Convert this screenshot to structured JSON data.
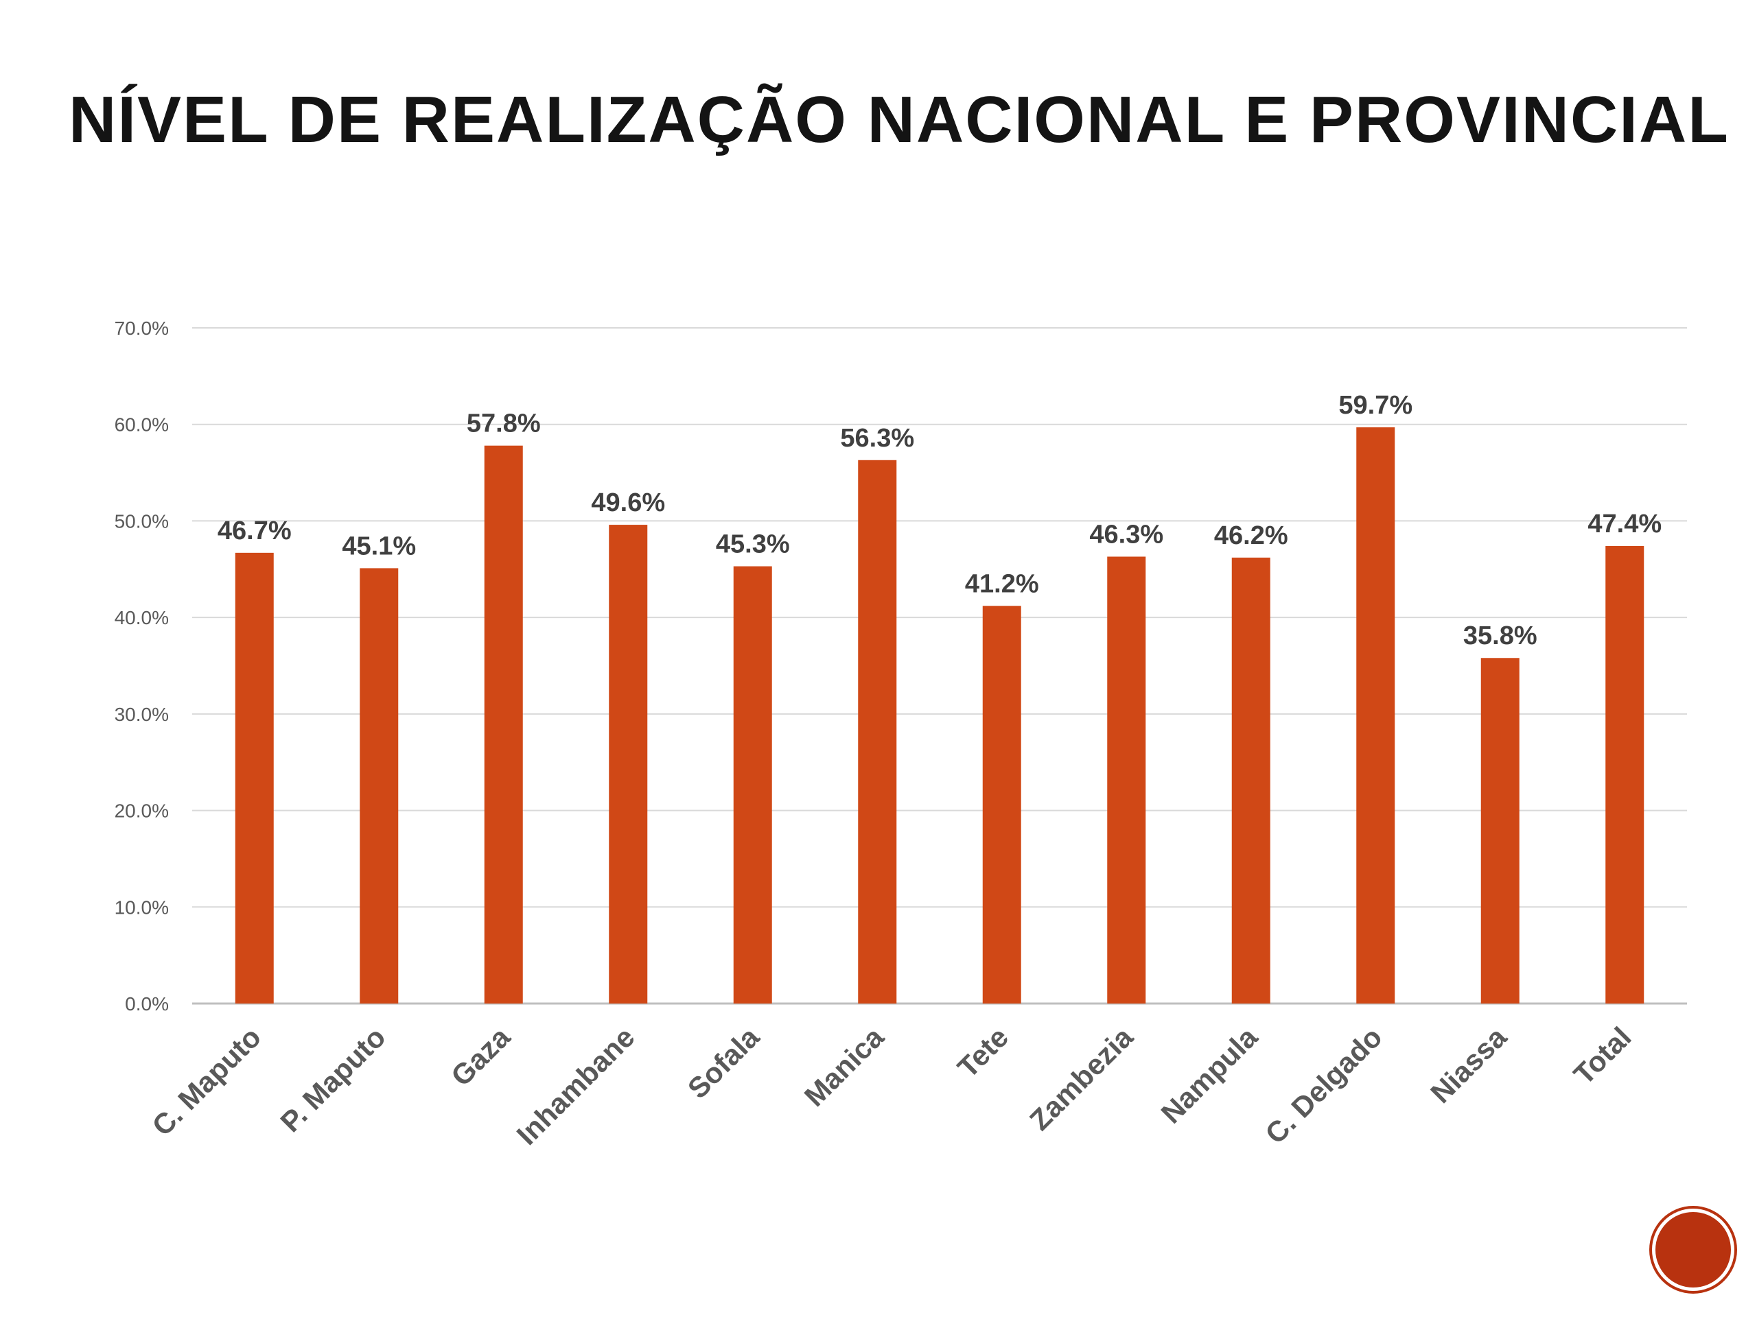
{
  "slide": {
    "title": "NÍVEL DE REALIZAÇÃO NACIONAL E PROVINCIAL",
    "page_number": ""
  },
  "colors": {
    "bar": "#d04816",
    "gridline": "#d9d9d9",
    "tick_label": "#595959",
    "data_label": "#404040",
    "title": "#141414",
    "badge": "#b8320f"
  },
  "chart_data": {
    "type": "bar",
    "title": "",
    "xlabel": "",
    "ylabel": "",
    "ylim": [
      0,
      70
    ],
    "grid": true,
    "legend": "none",
    "y_ticks": [
      "0.0%",
      "10.0%",
      "20.0%",
      "30.0%",
      "40.0%",
      "50.0%",
      "60.0%",
      "70.0%"
    ],
    "categories": [
      "C. Maputo",
      "P. Maputo",
      "Gaza",
      "Inhambane",
      "Sofala",
      "Manica",
      "Tete",
      "Zambezia",
      "Nampula",
      "C. Delgado",
      "Niassa",
      "Total"
    ],
    "values": [
      46.7,
      45.1,
      57.8,
      49.6,
      45.3,
      56.3,
      41.2,
      46.3,
      46.2,
      59.7,
      35.8,
      47.4
    ],
    "data_labels": [
      "46.7%",
      "45.1%",
      "57.8%",
      "49.6%",
      "45.3%",
      "56.3%",
      "41.2%",
      "46.3%",
      "46.2%",
      "59.7%",
      "35.8%",
      "47.4%"
    ]
  }
}
